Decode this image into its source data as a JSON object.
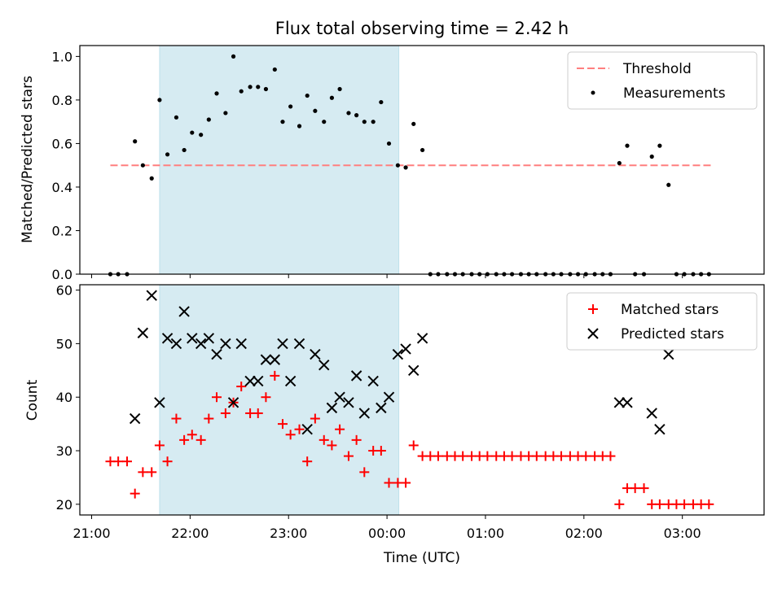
{
  "figure": {
    "title": "Flux total observing time = 2.42 h",
    "xlabel": "Time (UTC)",
    "x_tick_labels": [
      "21:00",
      "22:00",
      "23:00",
      "00:00",
      "01:00",
      "02:00",
      "03:00"
    ]
  },
  "chart_data": [
    {
      "type": "scatter",
      "panel": "top",
      "ylabel": "Matched/Predicted stars",
      "x_unit": "hours after 21:00 UTC",
      "xlim": [
        -0.12,
        6.83
      ],
      "ylim": [
        0,
        1.05
      ],
      "y_ticks": [
        "0.0",
        "0.2",
        "0.4",
        "0.6",
        "0.8",
        "1.0"
      ],
      "shaded_region": [
        0.69,
        3.12
      ],
      "legend": {
        "placement": "top-right",
        "entries": [
          "Threshold",
          "Measurements"
        ]
      },
      "threshold": {
        "name": "Threshold",
        "value": 0.5,
        "x_range": [
          0.19,
          6.31
        ],
        "color": "#ff7f7f"
      },
      "measurements": {
        "name": "Measurements",
        "color": "#000000",
        "x": [
          0.19,
          0.27,
          0.36,
          0.44,
          0.52,
          0.61,
          0.69,
          0.77,
          0.86,
          0.94,
          1.02,
          1.11,
          1.19,
          1.27,
          1.36,
          1.44,
          1.52,
          1.61,
          1.69,
          1.77,
          1.86,
          1.94,
          2.02,
          2.11,
          2.19,
          2.27,
          2.36,
          2.44,
          2.52,
          2.61,
          2.69,
          2.77,
          2.86,
          2.94,
          3.02,
          3.11,
          3.19,
          3.27,
          3.36,
          3.44,
          3.52,
          3.61,
          3.69,
          3.77,
          3.86,
          3.94,
          4.02,
          4.11,
          4.19,
          4.27,
          4.36,
          4.44,
          4.52,
          4.61,
          4.69,
          4.77,
          4.86,
          4.94,
          5.02,
          5.11,
          5.19,
          5.27,
          5.36,
          5.44,
          5.52,
          5.61,
          5.69,
          5.77,
          5.86,
          5.94,
          6.02,
          6.11,
          6.19,
          6.27
        ],
        "y": [
          0,
          0,
          0,
          0.61,
          0.5,
          0.44,
          0.8,
          0.55,
          0.72,
          0.57,
          0.65,
          0.64,
          0.71,
          0.83,
          0.74,
          1.0,
          0.84,
          0.86,
          0.86,
          0.85,
          0.94,
          0.7,
          0.77,
          0.68,
          0.82,
          0.75,
          0.7,
          0.81,
          0.85,
          0.74,
          0.73,
          0.7,
          0.7,
          0.79,
          0.6,
          0.5,
          0.49,
          0.69,
          0.57,
          0,
          0,
          0,
          0,
          0,
          0,
          0,
          0,
          0,
          0,
          0,
          0,
          0,
          0,
          0,
          0,
          0,
          0,
          0,
          0,
          0,
          0,
          0,
          0.51,
          0.59,
          0,
          0,
          0.54,
          0.59,
          0.41,
          0,
          0,
          0,
          0,
          0
        ]
      }
    },
    {
      "type": "scatter",
      "panel": "bottom",
      "ylabel": "Count",
      "x_unit": "hours after 21:00 UTC",
      "xlim": [
        -0.12,
        6.83
      ],
      "ylim": [
        18,
        61
      ],
      "y_ticks": [
        "20",
        "30",
        "40",
        "50",
        "60"
      ],
      "shaded_region": [
        0.69,
        3.12
      ],
      "legend": {
        "placement": "top-right",
        "entries": [
          "Matched stars",
          "Predicted stars"
        ]
      },
      "series": [
        {
          "name": "Matched stars",
          "marker": "plus",
          "color": "#ff0000",
          "x": [
            0.19,
            0.27,
            0.36,
            0.44,
            0.52,
            0.61,
            0.69,
            0.77,
            0.86,
            0.94,
            1.02,
            1.11,
            1.19,
            1.27,
            1.36,
            1.44,
            1.52,
            1.61,
            1.69,
            1.77,
            1.86,
            1.94,
            2.02,
            2.11,
            2.19,
            2.27,
            2.36,
            2.44,
            2.52,
            2.61,
            2.69,
            2.77,
            2.86,
            2.94,
            3.02,
            3.11,
            3.19,
            3.27,
            3.36,
            3.44,
            3.52,
            3.61,
            3.69,
            3.77,
            3.86,
            3.94,
            4.02,
            4.11,
            4.19,
            4.27,
            4.36,
            4.44,
            4.52,
            4.61,
            4.69,
            4.77,
            4.86,
            4.94,
            5.02,
            5.11,
            5.19,
            5.27,
            5.36,
            5.44,
            5.52,
            5.61,
            5.69,
            5.77,
            5.86,
            5.94,
            6.02,
            6.11,
            6.19,
            6.27
          ],
          "y": [
            28,
            28,
            28,
            22,
            26,
            26,
            31,
            28,
            36,
            32,
            33,
            32,
            36,
            40,
            37,
            39,
            42,
            37,
            37,
            40,
            44,
            35,
            33,
            34,
            28,
            36,
            32,
            31,
            34,
            29,
            32,
            26,
            30,
            30,
            24,
            24,
            24,
            31,
            29,
            29,
            29,
            29,
            29,
            29,
            29,
            29,
            29,
            29,
            29,
            29,
            29,
            29,
            29,
            29,
            29,
            29,
            29,
            29,
            29,
            29,
            29,
            29,
            20,
            23,
            23,
            23,
            20,
            20,
            20,
            20,
            20,
            20,
            20,
            20
          ]
        },
        {
          "name": "Predicted stars",
          "marker": "x",
          "color": "#000000",
          "x": [
            0.44,
            0.52,
            0.61,
            0.69,
            0.77,
            0.86,
            0.94,
            1.02,
            1.11,
            1.19,
            1.27,
            1.36,
            1.44,
            1.52,
            1.61,
            1.69,
            1.77,
            1.86,
            1.94,
            2.02,
            2.11,
            2.19,
            2.27,
            2.36,
            2.44,
            2.52,
            2.61,
            2.69,
            2.77,
            2.86,
            2.94,
            3.02,
            3.11,
            3.19,
            3.27,
            3.36,
            5.36,
            5.44,
            5.69,
            5.77,
            5.86
          ],
          "y": [
            36,
            52,
            59,
            39,
            51,
            50,
            56,
            51,
            50,
            51,
            48,
            50,
            39,
            50,
            43,
            43,
            47,
            47,
            50,
            43,
            50,
            34,
            48,
            46,
            38,
            40,
            39,
            44,
            37,
            43,
            38,
            40,
            48,
            49,
            45,
            51,
            39,
            39,
            37,
            34,
            48
          ]
        }
      ]
    }
  ]
}
